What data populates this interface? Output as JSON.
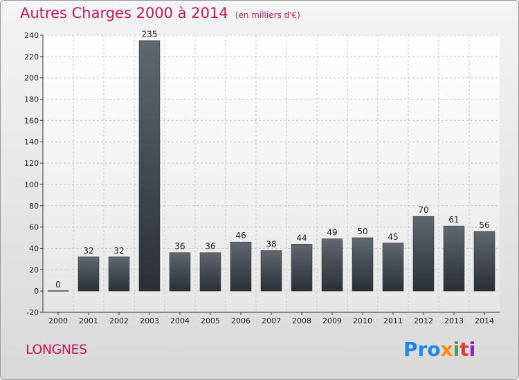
{
  "chart_data": {
    "type": "bar",
    "title": "Autres Charges 2000 à 2014",
    "subtitle": "(en milliers d'€)",
    "categories": [
      "2000",
      "2001",
      "2002",
      "2003",
      "2004",
      "2005",
      "2006",
      "2007",
      "2008",
      "2009",
      "2010",
      "2011",
      "2012",
      "2013",
      "2014"
    ],
    "values": [
      0,
      32,
      32,
      235,
      36,
      36,
      46,
      38,
      44,
      49,
      50,
      45,
      70,
      61,
      56
    ],
    "ylim": [
      -20,
      240
    ],
    "yticks": [
      -20,
      0,
      20,
      40,
      60,
      80,
      100,
      120,
      140,
      160,
      180,
      200,
      220,
      240
    ],
    "grid": true,
    "bar_color": "#3a3f46"
  },
  "commune": "LONGNES",
  "logo": {
    "p1": "Pro",
    "p2": "x",
    "p3": "i",
    "p4": "t",
    "p5": "i"
  }
}
